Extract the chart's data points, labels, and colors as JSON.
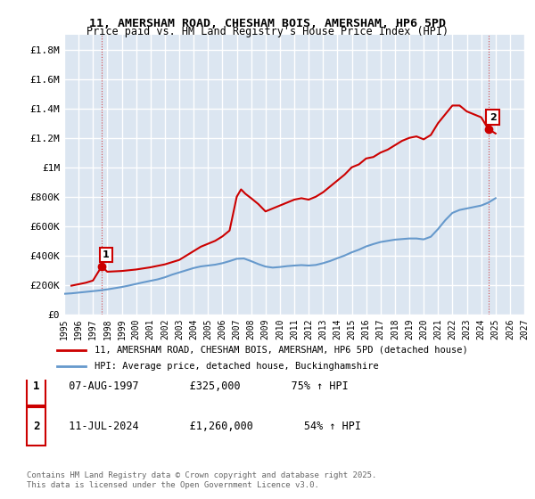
{
  "title": "11, AMERSHAM ROAD, CHESHAM BOIS, AMERSHAM, HP6 5PD",
  "subtitle": "Price paid vs. HM Land Registry's House Price Index (HPI)",
  "xlabel": "",
  "ylabel": "",
  "bg_color": "#ffffff",
  "plot_bg_color": "#dce6f1",
  "grid_color": "#ffffff",
  "ylim": [
    0,
    1900000
  ],
  "xlim": [
    1995,
    2027
  ],
  "yticks": [
    0,
    200000,
    400000,
    600000,
    800000,
    1000000,
    1200000,
    1400000,
    1600000,
    1800000
  ],
  "ytick_labels": [
    "£0",
    "£200K",
    "£400K",
    "£600K",
    "£800K",
    "£1M",
    "£1.2M",
    "£1.4M",
    "£1.6M",
    "£1.8M"
  ],
  "xticks": [
    1995,
    1996,
    1997,
    1998,
    1999,
    2000,
    2001,
    2002,
    2003,
    2004,
    2005,
    2006,
    2007,
    2008,
    2009,
    2010,
    2011,
    2012,
    2013,
    2014,
    2015,
    2016,
    2017,
    2018,
    2019,
    2020,
    2021,
    2022,
    2023,
    2024,
    2025,
    2026,
    2027
  ],
  "red_line_color": "#cc0000",
  "blue_line_color": "#6699cc",
  "marker1_x": 1997.6,
  "marker1_y": 325000,
  "marker2_x": 2024.5,
  "marker2_y": 1260000,
  "legend_label_red": "11, AMERSHAM ROAD, CHESHAM BOIS, AMERSHAM, HP6 5PD (detached house)",
  "legend_label_blue": "HPI: Average price, detached house, Buckinghamshire",
  "annotation1_date": "07-AUG-1997",
  "annotation1_price": "£325,000",
  "annotation1_hpi": "75% ↑ HPI",
  "annotation2_date": "11-JUL-2024",
  "annotation2_price": "£1,260,000",
  "annotation2_hpi": "54% ↑ HPI",
  "footer": "Contains HM Land Registry data © Crown copyright and database right 2025.\nThis data is licensed under the Open Government Licence v3.0.",
  "red_x": [
    1995.5,
    1996.0,
    1996.5,
    1997.0,
    1997.6,
    1998.0,
    1999.0,
    2000.0,
    2001.0,
    2002.0,
    2003.0,
    2003.5,
    2004.0,
    2004.5,
    2005.0,
    2005.5,
    2006.0,
    2006.5,
    2007.0,
    2007.3,
    2007.6,
    2008.0,
    2008.5,
    2009.0,
    2009.5,
    2010.0,
    2010.5,
    2011.0,
    2011.5,
    2012.0,
    2012.5,
    2013.0,
    2013.5,
    2014.0,
    2014.5,
    2015.0,
    2015.5,
    2016.0,
    2016.5,
    2017.0,
    2017.5,
    2018.0,
    2018.5,
    2019.0,
    2019.5,
    2020.0,
    2020.5,
    2021.0,
    2021.5,
    2022.0,
    2022.5,
    2023.0,
    2023.5,
    2024.0,
    2024.5,
    2025.0
  ],
  "red_y": [
    195000,
    205000,
    215000,
    230000,
    325000,
    290000,
    295000,
    305000,
    320000,
    340000,
    370000,
    400000,
    430000,
    460000,
    480000,
    500000,
    530000,
    570000,
    800000,
    850000,
    820000,
    790000,
    750000,
    700000,
    720000,
    740000,
    760000,
    780000,
    790000,
    780000,
    800000,
    830000,
    870000,
    910000,
    950000,
    1000000,
    1020000,
    1060000,
    1070000,
    1100000,
    1120000,
    1150000,
    1180000,
    1200000,
    1210000,
    1190000,
    1220000,
    1300000,
    1360000,
    1420000,
    1420000,
    1380000,
    1360000,
    1340000,
    1260000,
    1230000
  ],
  "blue_x": [
    1995.0,
    1995.5,
    1996.0,
    1996.5,
    1997.0,
    1997.5,
    1998.0,
    1998.5,
    1999.0,
    1999.5,
    2000.0,
    2000.5,
    2001.0,
    2001.5,
    2002.0,
    2002.5,
    2003.0,
    2003.5,
    2004.0,
    2004.5,
    2005.0,
    2005.5,
    2006.0,
    2006.5,
    2007.0,
    2007.5,
    2008.0,
    2008.5,
    2009.0,
    2009.5,
    2010.0,
    2010.5,
    2011.0,
    2011.5,
    2012.0,
    2012.5,
    2013.0,
    2013.5,
    2014.0,
    2014.5,
    2015.0,
    2015.5,
    2016.0,
    2016.5,
    2017.0,
    2017.5,
    2018.0,
    2018.5,
    2019.0,
    2019.5,
    2020.0,
    2020.5,
    2021.0,
    2021.5,
    2022.0,
    2022.5,
    2023.0,
    2023.5,
    2024.0,
    2024.5,
    2025.0
  ],
  "blue_y": [
    140000,
    143000,
    148000,
    153000,
    158000,
    163000,
    170000,
    178000,
    186000,
    196000,
    207000,
    218000,
    228000,
    238000,
    252000,
    270000,
    285000,
    300000,
    315000,
    326000,
    332000,
    338000,
    348000,
    362000,
    378000,
    380000,
    362000,
    342000,
    325000,
    318000,
    322000,
    328000,
    332000,
    335000,
    332000,
    336000,
    348000,
    363000,
    382000,
    400000,
    422000,
    440000,
    462000,
    478000,
    492000,
    500000,
    508000,
    512000,
    516000,
    516000,
    510000,
    528000,
    580000,
    640000,
    690000,
    710000,
    720000,
    730000,
    740000,
    760000,
    790000
  ]
}
